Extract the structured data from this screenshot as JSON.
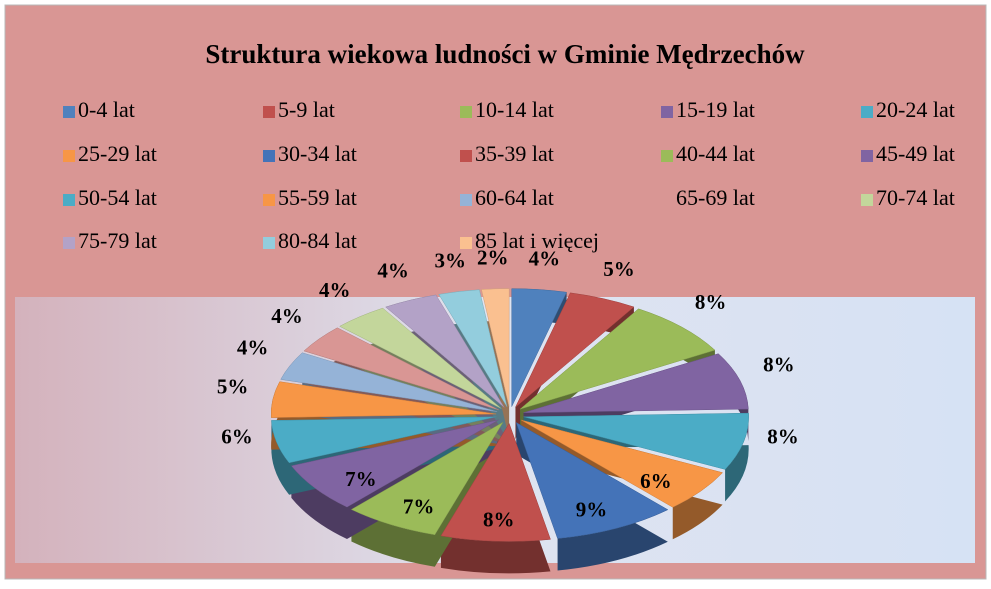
{
  "chart_data": {
    "type": "pie",
    "title": "Struktura wiekowa ludności w Gminie Mędrzechów",
    "categories": [
      "0-4 lat",
      "5-9 lat",
      "10-14 lat",
      "15-19 lat",
      "20-24 lat",
      "25-29 lat",
      "30-34 lat",
      "35-39 lat",
      "40-44 lat",
      "45-49 lat",
      "50-54 lat",
      "55-59 lat",
      "60-64 lat",
      "65-69 lat",
      "70-74 lat",
      "75-79 lat",
      "80-84 lat",
      "85 lat i więcej"
    ],
    "values": [
      4,
      5,
      8,
      8,
      8,
      6,
      9,
      8,
      7,
      7,
      6,
      5,
      4,
      4,
      4,
      4,
      3,
      2
    ],
    "value_labels": [
      "4%",
      "5%",
      "8%",
      "8%",
      "8%",
      "6%",
      "9%",
      "8%",
      "7%",
      "7%",
      "6%",
      "5%",
      "4%",
      "4%",
      "4%",
      "4%",
      "3%",
      "2%"
    ],
    "colors": [
      "#4f81bd",
      "#c0504d",
      "#9bbb59",
      "#8064a2",
      "#4bacc6",
      "#f79646",
      "#4473b8",
      "#c0504d",
      "#9bbb59",
      "#8064a2",
      "#4bacc6",
      "#f79646",
      "#95b3d7",
      "#d99694",
      "#c3d69b",
      "#b3a2c7",
      "#93cddd",
      "#fac090"
    ],
    "legend": "top"
  }
}
